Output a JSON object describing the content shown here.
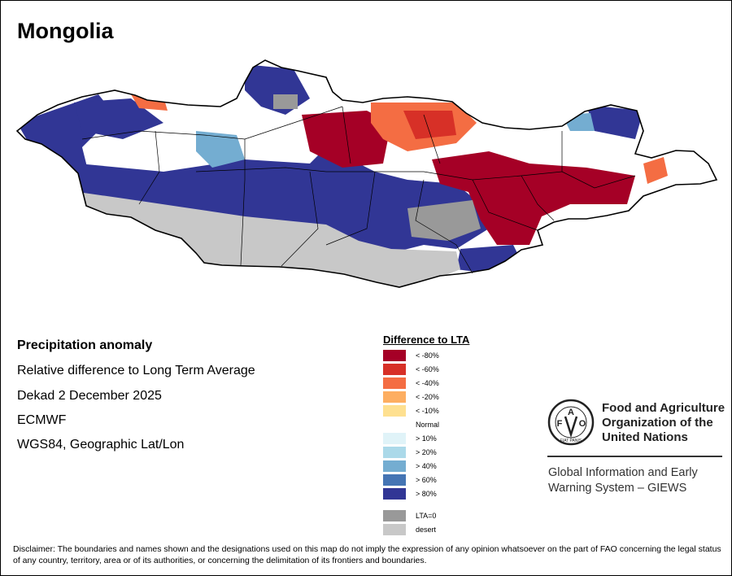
{
  "title": "Mongolia",
  "info": {
    "heading": "Precipitation anomaly",
    "subtitle": "Relative difference to Long Term Average",
    "period": "Dekad 2 December 2025",
    "source": "ECMWF",
    "projection": "WGS84, Geographic Lat/Lon"
  },
  "legend": {
    "title": "Difference to LTA",
    "items": [
      {
        "label": "< -80%",
        "color": "#a50026"
      },
      {
        "label": "< -60%",
        "color": "#d73027"
      },
      {
        "label": "< -40%",
        "color": "#f46d43"
      },
      {
        "label": "< -20%",
        "color": "#fdae61"
      },
      {
        "label": "< -10%",
        "color": "#fee090"
      },
      {
        "label": "Normal",
        "color": "#ffffff"
      },
      {
        "label": "> 10%",
        "color": "#e0f3f8"
      },
      {
        "label": "> 20%",
        "color": "#abd9e9"
      },
      {
        "label": "> 40%",
        "color": "#74add1"
      },
      {
        "label": "> 60%",
        "color": "#4575b4"
      },
      {
        "label": "> 80%",
        "color": "#313695"
      },
      {
        "label": "LTA=0",
        "color": "#999999"
      },
      {
        "label": "desert",
        "color": "#c8c8c8"
      }
    ]
  },
  "logo": {
    "org_line1": "Food and Agriculture",
    "org_line2": "Organization of the",
    "org_line3": "United Nations",
    "emblem_text": "FAO FIAT PANIS",
    "giews_line1": "Global Information and Early",
    "giews_line2": "Warning System – GIEWS"
  },
  "disclaimer": "Disclaimer: The boundaries and names shown and the designations used on this map do not imply the expression of any opinion whatsoever on the part of FAO concerning the legal status of any country, territory, area or of its authorities, or concerning the delimitation of its frontiers and boundaries."
}
